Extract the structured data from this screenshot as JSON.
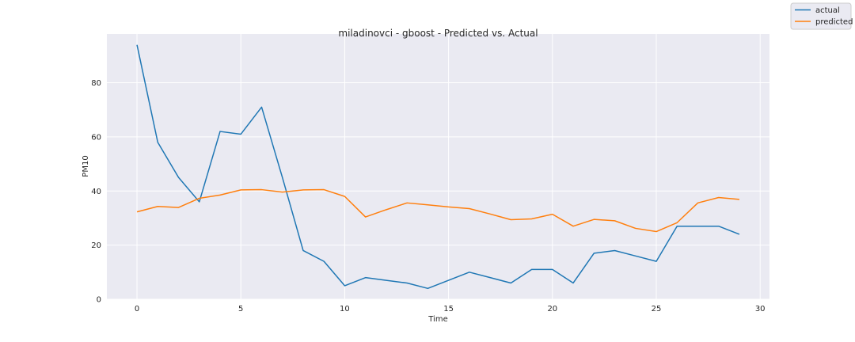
{
  "chart_data": {
    "type": "line",
    "title": "miladinovci - gboost - Predicted vs. Actual",
    "xlabel": "Time",
    "ylabel": "PM10",
    "xlim": [
      -1.45,
      30.45
    ],
    "ylim": [
      0,
      98
    ],
    "x_ticks": [
      0,
      5,
      10,
      15,
      20,
      25,
      30
    ],
    "y_ticks": [
      0,
      20,
      40,
      60,
      80
    ],
    "grid": true,
    "legend_position": "top-right",
    "x": [
      0,
      1,
      2,
      3,
      4,
      5,
      6,
      7,
      8,
      9,
      10,
      11,
      12,
      13,
      14,
      15,
      16,
      17,
      18,
      19,
      20,
      21,
      22,
      23,
      24,
      25,
      26,
      27,
      28,
      29
    ],
    "series": [
      {
        "name": "actual",
        "color": "#1f77b4",
        "values": [
          94,
          58,
          45,
          36,
          62,
          61,
          71,
          45,
          18,
          14,
          5,
          8,
          7,
          6,
          4,
          7,
          10,
          8,
          6,
          11,
          11,
          6,
          17,
          18,
          16,
          14,
          27,
          27,
          27,
          24
        ]
      },
      {
        "name": "predicted",
        "color": "#ff7f0e",
        "values": [
          32.3,
          34.3,
          33.9,
          37.3,
          38.5,
          40.4,
          40.5,
          39.6,
          40.4,
          40.5,
          38.0,
          30.4,
          33.1,
          35.6,
          34.9,
          34.1,
          33.5,
          31.5,
          29.4,
          29.7,
          31.4,
          27.0,
          29.5,
          29.0,
          26.2,
          25.0,
          28.3,
          35.6,
          37.6,
          36.9
        ]
      }
    ]
  }
}
